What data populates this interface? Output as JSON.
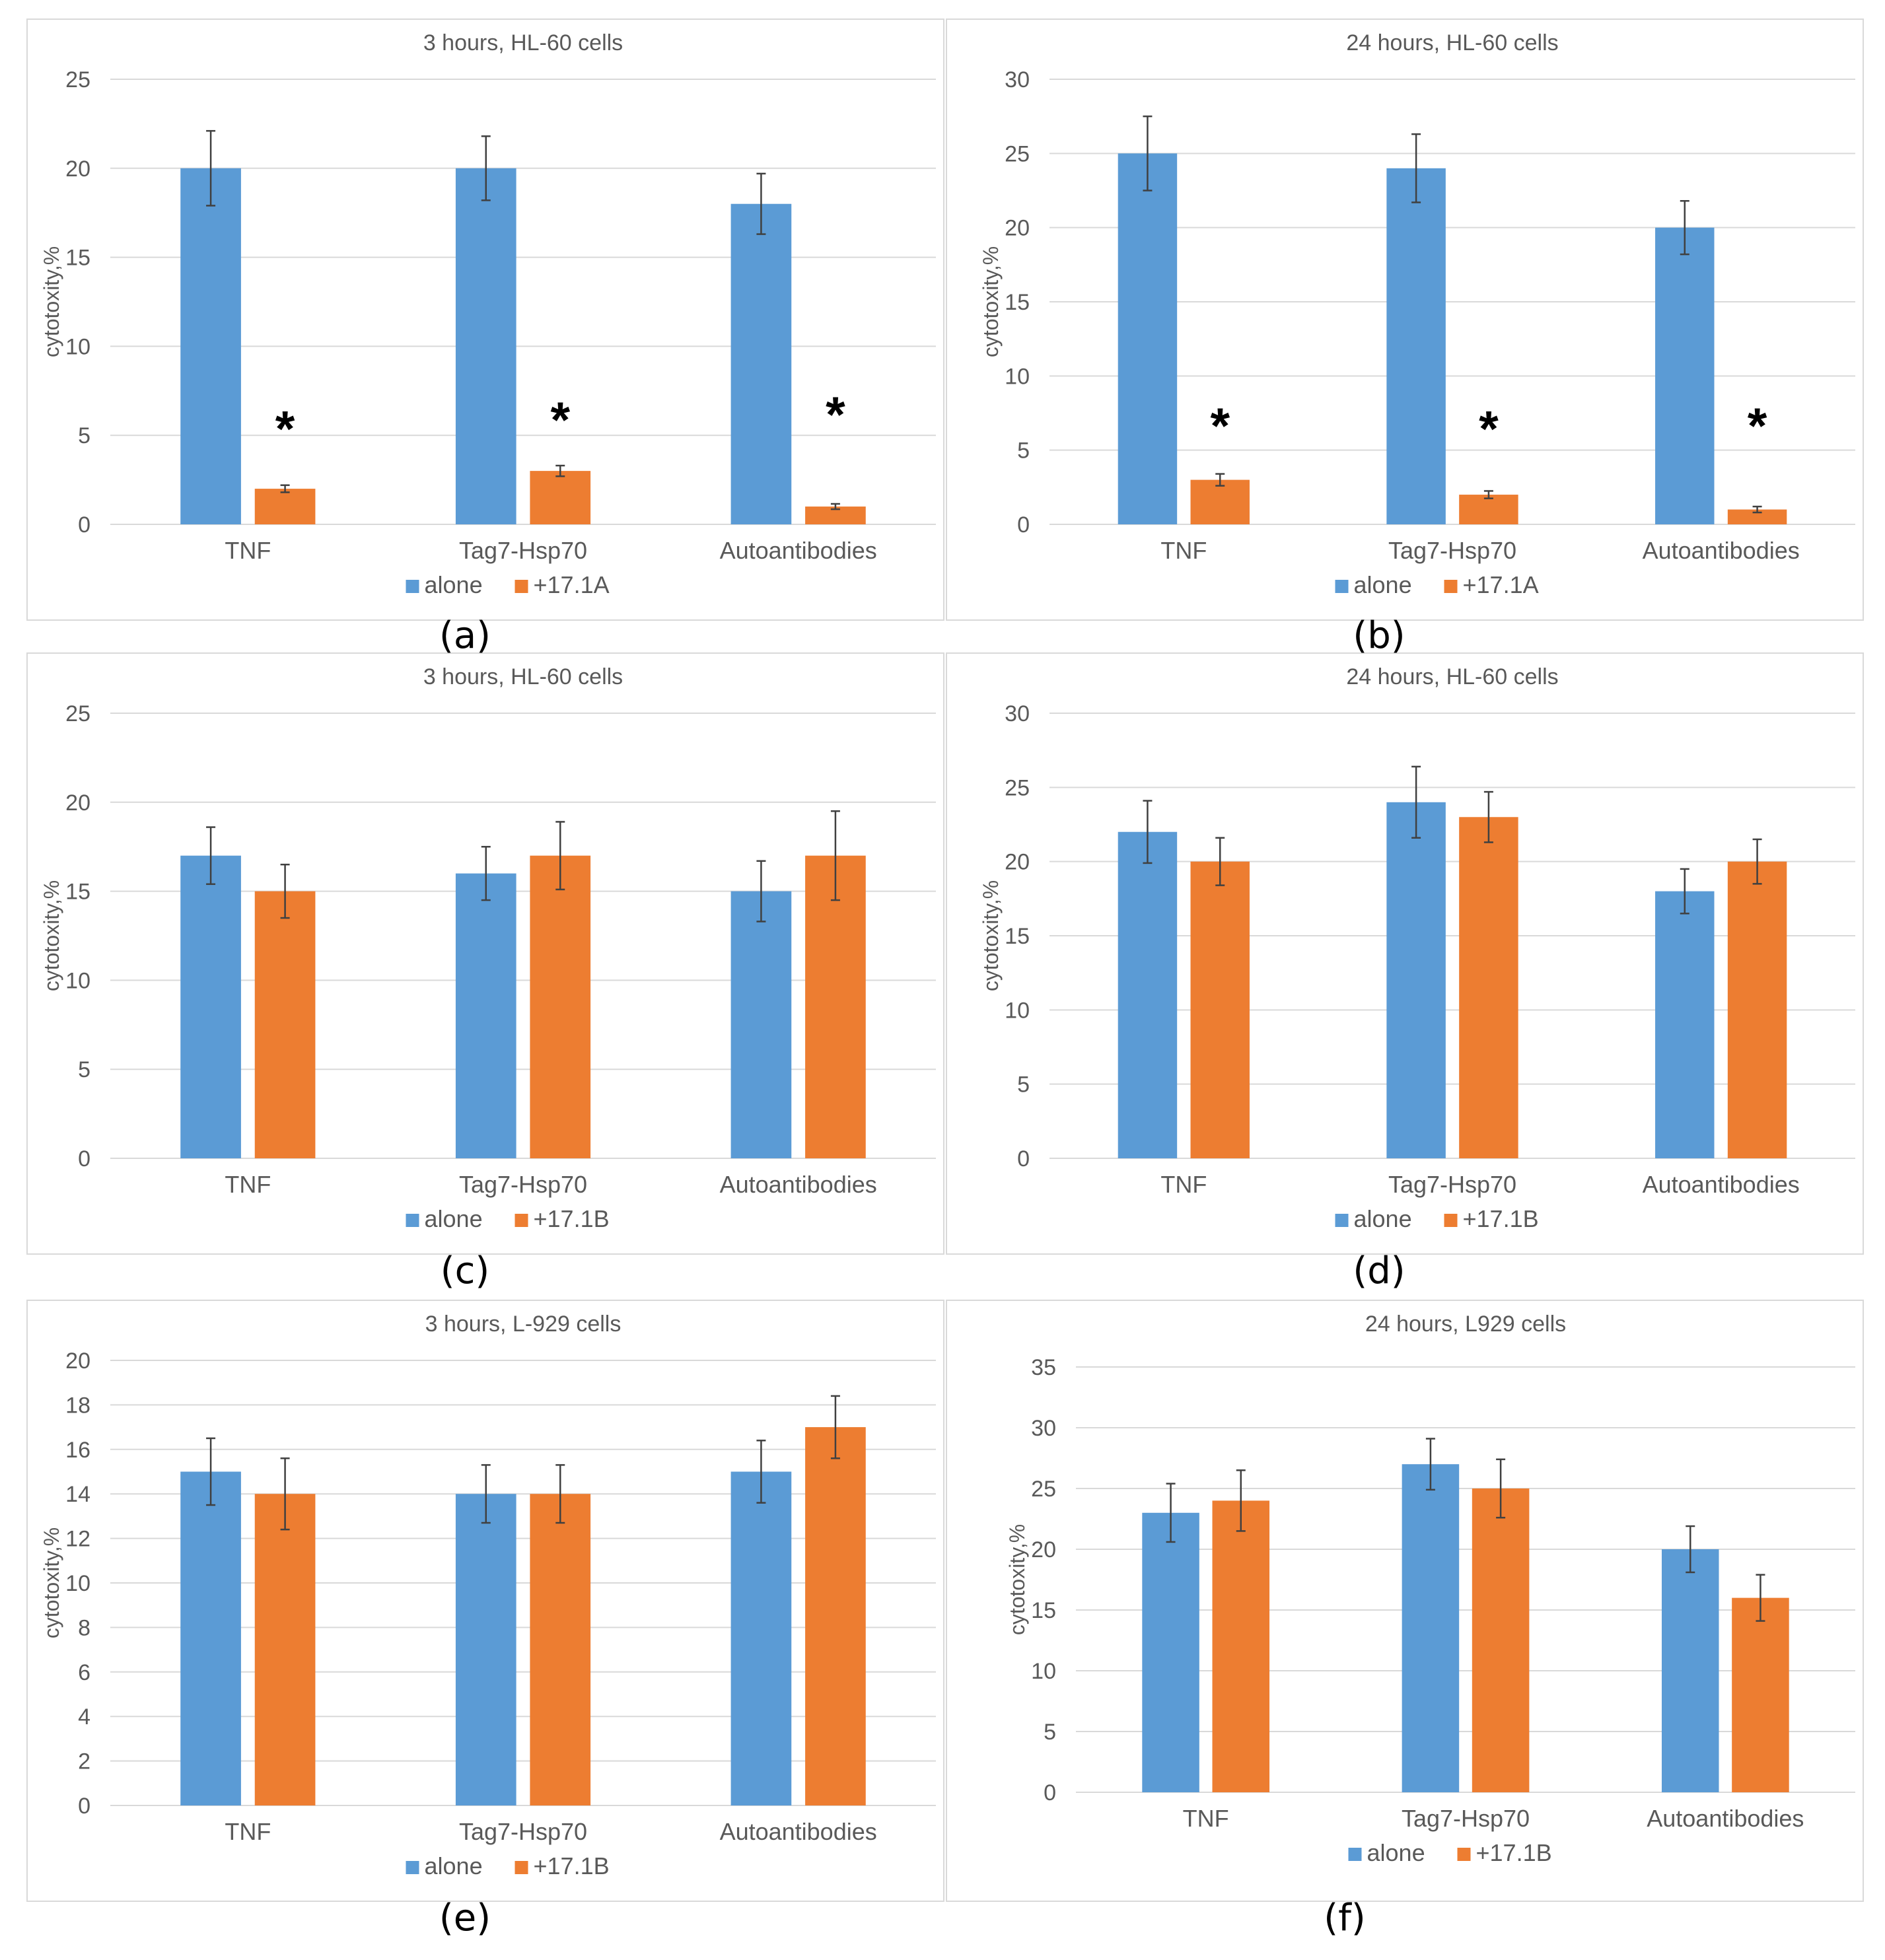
{
  "colors": {
    "alone": "#5b9bd5",
    "treated": "#ed7d31",
    "grid": "#d9d9d9",
    "text": "#595959",
    "errorbar": "#404040"
  },
  "panel_labels": {
    "a": "(a)",
    "b": "(b)",
    "c": "(c)",
    "d": "(d)",
    "e": "(e)",
    "f": "(f)"
  },
  "chart_data": [
    {
      "id": "a",
      "type": "bar",
      "title": "3 hours, HL-60 cells",
      "ylabel": "cytotoxity,%",
      "xlabel": "",
      "categories": [
        "TNF",
        "Tag7-Hsp70",
        "Autoantibodies"
      ],
      "ylim": [
        0,
        25
      ],
      "yticks": [
        0,
        5,
        10,
        15,
        20,
        25
      ],
      "series": [
        {
          "name": "alone",
          "values": [
            20,
            20,
            18
          ],
          "errors": [
            2.1,
            1.8,
            1.7
          ]
        },
        {
          "name": "+17.1A",
          "values": [
            2,
            3,
            1
          ],
          "errors": [
            0.2,
            0.3,
            0.15
          ]
        }
      ],
      "annotations": [
        {
          "text": "*",
          "category": "TNF",
          "series": "+17.1A",
          "y": 5.5
        },
        {
          "text": "*",
          "category": "Tag7-Hsp70",
          "series": "+17.1A",
          "y": 6.0
        },
        {
          "text": "*",
          "category": "Autoantibodies",
          "series": "+17.1A",
          "y": 6.3
        }
      ]
    },
    {
      "id": "b",
      "type": "bar",
      "title": "24 hours, HL-60 cells",
      "ylabel": "cytotoxity,%",
      "xlabel": "",
      "categories": [
        "TNF",
        "Tag7-Hsp70",
        "Autoantibodies"
      ],
      "ylim": [
        0,
        30
      ],
      "yticks": [
        0,
        5,
        10,
        15,
        20,
        25,
        30
      ],
      "series": [
        {
          "name": "alone",
          "values": [
            25,
            24,
            20
          ],
          "errors": [
            2.5,
            2.3,
            1.8
          ]
        },
        {
          "name": "+17.1A",
          "values": [
            3,
            2,
            1
          ],
          "errors": [
            0.4,
            0.25,
            0.2
          ]
        }
      ],
      "annotations": [
        {
          "text": "*",
          "category": "TNF",
          "series": "+17.1A",
          "y": 6.8
        },
        {
          "text": "*",
          "category": "Tag7-Hsp70",
          "series": "+17.1A",
          "y": 6.6
        },
        {
          "text": "*",
          "category": "Autoantibodies",
          "series": "+17.1A",
          "y": 6.8
        }
      ]
    },
    {
      "id": "c",
      "type": "bar",
      "title": "3 hours, HL-60 cells",
      "ylabel": "cytotoxity,%",
      "xlabel": "",
      "categories": [
        "TNF",
        "Tag7-Hsp70",
        "Autoantibodies"
      ],
      "ylim": [
        0,
        25
      ],
      "yticks": [
        0,
        5,
        10,
        15,
        20,
        25
      ],
      "series": [
        {
          "name": "alone",
          "values": [
            17,
            16,
            15
          ],
          "errors": [
            1.6,
            1.5,
            1.7
          ]
        },
        {
          "name": "+17.1B",
          "values": [
            15,
            17,
            17
          ],
          "errors": [
            1.5,
            1.9,
            2.5
          ]
        }
      ],
      "annotations": []
    },
    {
      "id": "d",
      "type": "bar",
      "title": "24 hours, HL-60 cells",
      "ylabel": "cytotoxity,%",
      "xlabel": "",
      "categories": [
        "TNF",
        "Tag7-Hsp70",
        "Autoantibodies"
      ],
      "ylim": [
        0,
        30
      ],
      "yticks": [
        0,
        5,
        10,
        15,
        20,
        25,
        30
      ],
      "series": [
        {
          "name": "alone",
          "values": [
            22,
            24,
            18
          ],
          "errors": [
            2.1,
            2.4,
            1.5
          ]
        },
        {
          "name": "+17.1B",
          "values": [
            20,
            23,
            20
          ],
          "errors": [
            1.6,
            1.7,
            1.5
          ]
        }
      ],
      "annotations": []
    },
    {
      "id": "e",
      "type": "bar",
      "title": "3 hours, L-929 cells",
      "ylabel": "cytotoxity,%",
      "xlabel": "",
      "categories": [
        "TNF",
        "Tag7-Hsp70",
        "Autoantibodies"
      ],
      "ylim": [
        0,
        20
      ],
      "yticks": [
        0,
        2,
        4,
        6,
        8,
        10,
        12,
        14,
        16,
        18,
        20
      ],
      "series": [
        {
          "name": "alone",
          "values": [
            15,
            14,
            15
          ],
          "errors": [
            1.5,
            1.3,
            1.4
          ]
        },
        {
          "name": "+17.1B",
          "values": [
            14,
            14,
            17
          ],
          "errors": [
            1.6,
            1.3,
            1.4
          ]
        }
      ],
      "annotations": []
    },
    {
      "id": "f",
      "type": "bar",
      "title": "24 hours, L929 cells",
      "ylabel": "cytotoxity,%",
      "xlabel": "",
      "categories": [
        "TNF",
        "Tag7-Hsp70",
        "Autoantibodies"
      ],
      "ylim": [
        0,
        35
      ],
      "yticks": [
        0,
        5,
        10,
        15,
        20,
        25,
        30,
        35
      ],
      "series": [
        {
          "name": "alone",
          "values": [
            23,
            27,
            20
          ],
          "errors": [
            2.4,
            2.1,
            1.9
          ]
        },
        {
          "name": "+17.1B",
          "values": [
            24,
            25,
            16
          ],
          "errors": [
            2.5,
            2.4,
            1.9
          ]
        }
      ],
      "annotations": []
    }
  ]
}
